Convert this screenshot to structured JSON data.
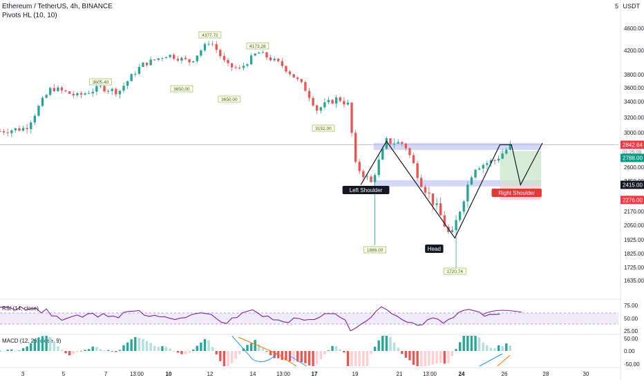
{
  "header": {
    "symbol_title": "Ethereum / TetherUS, 4h, BINANCE",
    "indicator": "Pivots HL (10, 10)",
    "scale_currency": "USDT",
    "scale_count": "5"
  },
  "price_axis": {
    "ticks": [
      4600,
      4200,
      3800,
      3600,
      3400,
      3200,
      3000,
      2600,
      2450,
      2170,
      2050,
      1925,
      1825,
      1725,
      1635
    ],
    "tick_labels": [
      "4600.00",
      "4200.00",
      "3800.00",
      "3600.00",
      "3400.00",
      "3200.00",
      "3000.00",
      "2600.00",
      "2450.00",
      "2170.00",
      "2050.00",
      "1925.00",
      "1825.00",
      "1725.00",
      "1635.00"
    ],
    "current_price": "2842.64",
    "countdown": "01:25:09",
    "take_profit": "2788.00",
    "entry": "2415.00",
    "stop_loss": "2276.00"
  },
  "time_axis": {
    "labels": [
      "3",
      "5",
      "7",
      "13:00",
      "10",
      "12",
      "14",
      "13:00",
      "17",
      "19",
      "21",
      "13:00",
      "24",
      "26",
      "28",
      "30"
    ]
  },
  "pivot_labels": [
    "4377.72",
    "4173.28",
    "3605.40",
    "3650.00",
    "3650.00",
    "3152.00",
    "1886.00",
    "1720.74"
  ],
  "pattern_labels": {
    "left_shoulder": "Left Shoulder",
    "head": "Head",
    "right_shoulder": "Right Shoulder"
  },
  "rsi": {
    "title": "RSI (14, close)",
    "ticks": [
      "75.00",
      "50.00",
      "25.00"
    ]
  },
  "macd": {
    "title": "MACD (12, 26, close, 9)",
    "ticks": [
      "50.00",
      "0.00",
      "-50.00"
    ]
  },
  "colors": {
    "up": "#26a69a",
    "down": "#ef5350",
    "rsi_line": "#7e1fa0",
    "macd_line": "#2196f3",
    "signal_line": "#ff6d00",
    "zone": "#9fa8f0",
    "target_zone": "#c8e6c9",
    "stop_zone": "#ffcdd2"
  },
  "chart_data": {
    "type": "candlestick",
    "title": "Ethereum / TetherUS, 4h, BINANCE",
    "ylim": [
      1600,
      4750
    ],
    "x_range": [
      0,
      480
    ],
    "candle_count": 390,
    "waypoints": [
      [
        0,
        3020
      ],
      [
        20,
        3060
      ],
      [
        40,
        3600
      ],
      [
        60,
        3480
      ],
      [
        78,
        3605
      ],
      [
        92,
        3540
      ],
      [
        110,
        3960
      ],
      [
        130,
        4130
      ],
      [
        148,
        4010
      ],
      [
        163,
        4378
      ],
      [
        176,
        3950
      ],
      [
        186,
        3890
      ],
      [
        200,
        4173
      ],
      [
        218,
        3970
      ],
      [
        236,
        3610
      ],
      [
        246,
        3300
      ],
      [
        262,
        3450
      ],
      [
        270,
        3360
      ],
      [
        276,
        2620
      ],
      [
        288,
        2430
      ],
      [
        300,
        2900
      ],
      [
        314,
        2870
      ],
      [
        326,
        2460
      ],
      [
        340,
        2180
      ],
      [
        350,
        1930
      ],
      [
        368,
        2600
      ],
      [
        384,
        2680
      ],
      [
        396,
        2842
      ]
    ],
    "pivot_highs": [
      {
        "x": 78,
        "price": 3605.4
      },
      {
        "x": 163,
        "price": 4377.72
      },
      {
        "x": 200,
        "price": 4173.28
      }
    ],
    "pivot_lows": [
      {
        "x": 141,
        "price": 3650.0
      },
      {
        "x": 178,
        "price": 3650.0
      },
      {
        "x": 251,
        "price": 3152.0
      },
      {
        "x": 291,
        "price": 1886.0
      },
      {
        "x": 353,
        "price": 1720.74
      }
    ],
    "neckline": 2842,
    "entry_level": 2415,
    "take_profit": 2788,
    "stop_loss": 2276,
    "pattern": "Inverse Head and Shoulders"
  }
}
